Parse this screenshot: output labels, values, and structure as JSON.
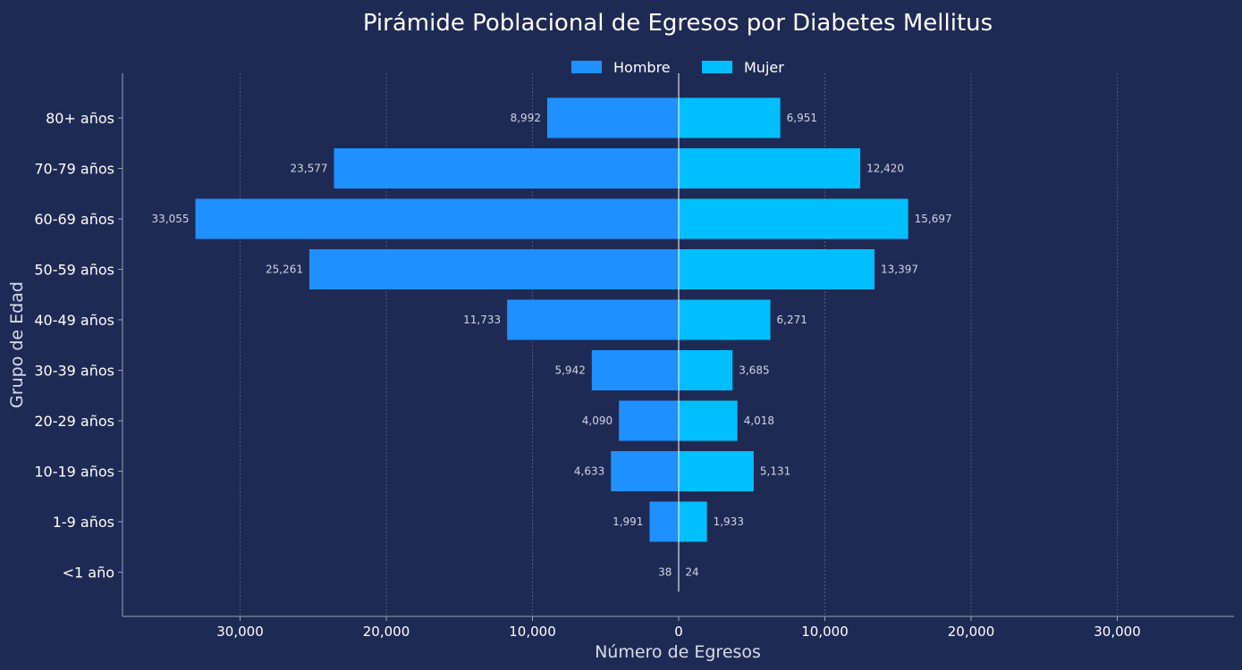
{
  "colors": {
    "background": "#1f2a54",
    "hombre": "#1e90ff",
    "mujer": "#00bfff",
    "text": "#ffffff",
    "value_label": "#d0d4e4",
    "grid": "#5a6488",
    "axis": "#9aa0b8"
  },
  "chart_data": {
    "type": "bar",
    "orientation": "horizontal-pyramid",
    "title": "Pirámide Poblacional de Egresos por Diabetes Mellitus",
    "xlabel": "Número de Egresos",
    "ylabel": "Grupo de Edad",
    "categories": [
      "80+ años",
      "70-79 años",
      "60-69 años",
      "50-59 años",
      "40-49 años",
      "30-39 años",
      "20-29 años",
      "10-19 años",
      "1-9 años",
      "<1 año"
    ],
    "series": [
      {
        "name": "Hombre",
        "values": [
          8992,
          23577,
          33055,
          25261,
          11733,
          5942,
          4090,
          4633,
          1991,
          38
        ]
      },
      {
        "name": "Mujer",
        "values": [
          6951,
          12420,
          15697,
          13397,
          6271,
          3685,
          4018,
          5131,
          1933,
          24
        ]
      }
    ],
    "value_labels": {
      "Hombre": [
        "8,992",
        "23,577",
        "33,055",
        "25,261",
        "11,733",
        "5,942",
        "4,090",
        "4,633",
        "1,991",
        "38"
      ],
      "Mujer": [
        "6,951",
        "12,420",
        "15,697",
        "13,397",
        "6,271",
        "3,685",
        "4,018",
        "5,131",
        "1,933",
        "24"
      ]
    },
    "xticks": [
      -30000,
      -20000,
      -10000,
      0,
      10000,
      20000,
      30000
    ],
    "xtick_labels": [
      "30,000",
      "20,000",
      "10,000",
      "0",
      "10,000",
      "20,000",
      "30,000"
    ],
    "xlim": [
      -38000,
      38000
    ],
    "grid": "vertical dotted",
    "legend": "top-center"
  }
}
